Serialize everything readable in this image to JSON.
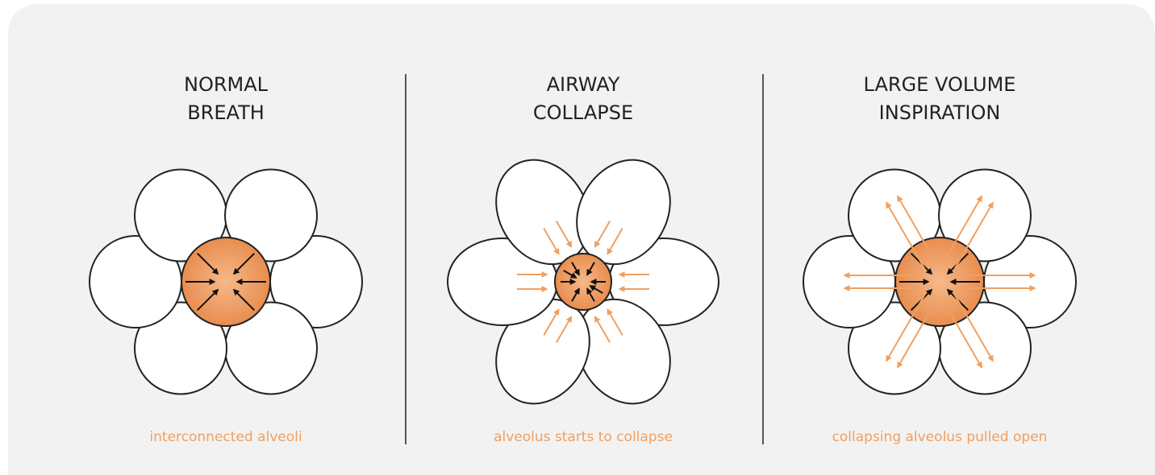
{
  "panels": [
    {
      "title_lines": [
        "NORMAL",
        "BREATH"
      ],
      "caption": "interconnected alveoli"
    },
    {
      "title_lines": [
        "AIRWAY",
        "COLLAPSE"
      ],
      "caption": "alveolus starts to collapse"
    },
    {
      "title_lines": [
        "LARGE VOLUME",
        "INSPIRATION"
      ],
      "caption": "collapsing alveolus pulled open"
    }
  ]
}
